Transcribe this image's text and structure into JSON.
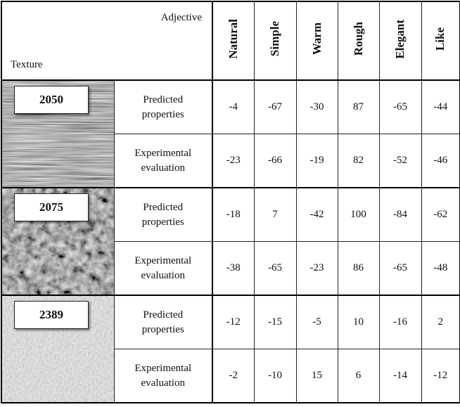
{
  "table": {
    "header": {
      "corner_top": "Adjective",
      "corner_bottom": "Texture",
      "columns": [
        "Natural",
        "Simple",
        "Warm",
        "Rough",
        "Elegant",
        "Like"
      ]
    },
    "groups": [
      {
        "texture": "2050",
        "rows": [
          {
            "label": "Predicted properties",
            "values": [
              -4,
              -67,
              -30,
              87,
              -65,
              -44
            ]
          },
          {
            "label": "Experimental evaluation",
            "values": [
              -23,
              -66,
              -19,
              82,
              -52,
              -46
            ]
          }
        ]
      },
      {
        "texture": "2075",
        "rows": [
          {
            "label": "Predicted properties",
            "values": [
              -18,
              7,
              -42,
              100,
              -84,
              -62
            ]
          },
          {
            "label": "Experimental evaluation",
            "values": [
              -38,
              -65,
              -23,
              86,
              -65,
              -48
            ]
          }
        ]
      },
      {
        "texture": "2389",
        "rows": [
          {
            "label": "Predicted properties",
            "values": [
              -12,
              -15,
              -5,
              10,
              -16,
              2
            ]
          },
          {
            "label": "Experimental evaluation",
            "values": [
              -2,
              -10,
              15,
              6,
              -14,
              -12
            ]
          }
        ]
      }
    ]
  }
}
